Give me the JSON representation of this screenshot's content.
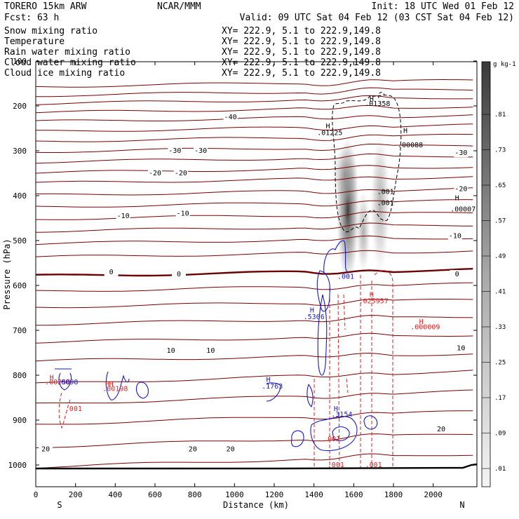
{
  "header": {
    "model": "TORERO  15km ARW",
    "center": "NCAR/MMM",
    "init": "Init: 18 UTC Wed 01 Feb 12",
    "fcst": "Fcst:   63 h",
    "valid": "Valid: 09 UTC Sat 04 Feb 12 (03 CST Sat 04 Feb 12)"
  },
  "legend": [
    {
      "name": "Snow mixing ratio",
      "xy": "XY= 222.9,  5.1 to 222.9,149.8",
      "color": "#000000"
    },
    {
      "name": "Temperature",
      "xy": "XY= 222.9,  5.1 to 222.9,149.8",
      "color": "#cc0000"
    },
    {
      "name": "Rain water mixing ratio",
      "xy": "XY= 222.9,  5.1 to 222.9,149.8",
      "color": "#cc0000"
    },
    {
      "name": "Cloud water mixing ratio",
      "xy": "XY= 222.9,  5.1 to 222.9,149.8",
      "color": "#0000cc"
    },
    {
      "name": "Cloud ice mixing ratio",
      "xy": "XY= 222.9,  5.1 to 222.9,149.8",
      "color": "#000000"
    }
  ],
  "chart_data": {
    "type": "cross-section",
    "xlabel": "Distance (km)",
    "ylabel": "Pressure (hPa)",
    "xlim": [
      0,
      2220
    ],
    "ylim": [
      1000,
      100
    ],
    "x_ticks": [
      0,
      200,
      400,
      600,
      800,
      1000,
      1200,
      1400,
      1600,
      1800,
      2000
    ],
    "y_ticks": [
      100,
      200,
      300,
      400,
      500,
      600,
      700,
      800,
      900,
      1000
    ],
    "end_labels": {
      "left": "S",
      "right": "N"
    },
    "colorbar": {
      "units": "g kg-1",
      "labels": [
        ".01",
        ".09",
        ".17",
        ".25",
        ".33",
        ".41",
        ".49",
        ".57",
        ".65",
        ".73",
        ".81"
      ],
      "colors": {
        "low": "#f4f4f4",
        "high": "#3a3a3a"
      }
    },
    "temperature": {
      "color": "#7a0000",
      "freezing_color": "#6a0000",
      "labels": [
        {
          "text": "-40",
          "x": 980,
          "p": 225
        },
        {
          "text": "-30",
          "x": 700,
          "p": 300
        },
        {
          "text": "-30",
          "x": 830,
          "p": 300
        },
        {
          "text": "-30",
          "x": 2140,
          "p": 305
        },
        {
          "text": "-20",
          "x": 600,
          "p": 350
        },
        {
          "text": "-20",
          "x": 730,
          "p": 350
        },
        {
          "text": "-20",
          "x": 2140,
          "p": 385
        },
        {
          "text": "-10",
          "x": 440,
          "p": 445
        },
        {
          "text": "-10",
          "x": 740,
          "p": 440
        },
        {
          "text": "-10",
          "x": 2110,
          "p": 490
        },
        {
          "text": "0",
          "x": 380,
          "p": 570
        },
        {
          "text": "0",
          "x": 720,
          "p": 575
        },
        {
          "text": "0",
          "x": 2120,
          "p": 575
        },
        {
          "text": "10",
          "x": 680,
          "p": 745
        },
        {
          "text": "10",
          "x": 880,
          "p": 745
        },
        {
          "text": "10",
          "x": 2140,
          "p": 740
        },
        {
          "text": "20",
          "x": 50,
          "p": 965
        },
        {
          "text": "20",
          "x": 790,
          "p": 965
        },
        {
          "text": "20",
          "x": 980,
          "p": 965
        },
        {
          "text": "20",
          "x": 2040,
          "p": 920
        }
      ]
    },
    "snow": {
      "color": "#000000",
      "labels": [
        {
          "text": "H",
          "x": 1690,
          "p": 190
        },
        {
          "text": ".01358",
          "x": 1720,
          "p": 200
        },
        {
          "text": "H",
          "x": 1470,
          "p": 250
        },
        {
          "text": ".01225",
          "x": 1480,
          "p": 265
        },
        {
          "text": ".001",
          "x": 1760,
          "p": 396
        },
        {
          "text": ".001",
          "x": 1760,
          "p": 421
        }
      ]
    },
    "ice": {
      "color": "#000000",
      "labels": [
        {
          "text": "H",
          "x": 1860,
          "p": 260
        },
        {
          "text": ".00088",
          "x": 1885,
          "p": 292
        },
        {
          "text": "H",
          "x": 2120,
          "p": 410
        },
        {
          "text": ".00007",
          "x": 2150,
          "p": 435
        }
      ]
    },
    "rain": {
      "color": "#dd2222",
      "labels": [
        {
          "text": "H",
          "x": 1690,
          "p": 626
        },
        {
          "text": ".025957",
          "x": 1700,
          "p": 640
        },
        {
          "text": "H",
          "x": 1940,
          "p": 686
        },
        {
          "text": ".000009",
          "x": 1960,
          "p": 698
        },
        {
          "text": "H",
          "x": 80,
          "p": 810
        },
        {
          "text": ".00258",
          "x": 110,
          "p": 820
        },
        {
          "text": "H",
          "x": 360,
          "p": 825
        },
        {
          "text": "H",
          "x": 380,
          "p": 825
        },
        {
          "text": ".00198",
          "x": 400,
          "p": 835
        },
        {
          "text": ".001",
          "x": 190,
          "p": 880
        },
        {
          "text": ".001",
          "x": 1490,
          "p": 947
        },
        {
          "text": ".001",
          "x": 1510,
          "p": 1005
        },
        {
          "text": ".001",
          "x": 1700,
          "p": 1005
        }
      ]
    },
    "cloud_water": {
      "color": "#1a1acc",
      "labels": [
        {
          "text": ".001",
          "x": 1560,
          "p": 585
        },
        {
          "text": "H",
          "x": 1390,
          "p": 660
        },
        {
          "text": ".5306",
          "x": 1400,
          "p": 675
        },
        {
          "text": "H",
          "x": 1170,
          "p": 815
        },
        {
          "text": ".1763",
          "x": 1190,
          "p": 830
        },
        {
          "text": "H",
          "x": 1510,
          "p": 880
        },
        {
          "text": ".3154",
          "x": 1540,
          "p": 892
        },
        {
          "text": ".0098",
          "x": 160,
          "p": 820
        }
      ]
    }
  }
}
